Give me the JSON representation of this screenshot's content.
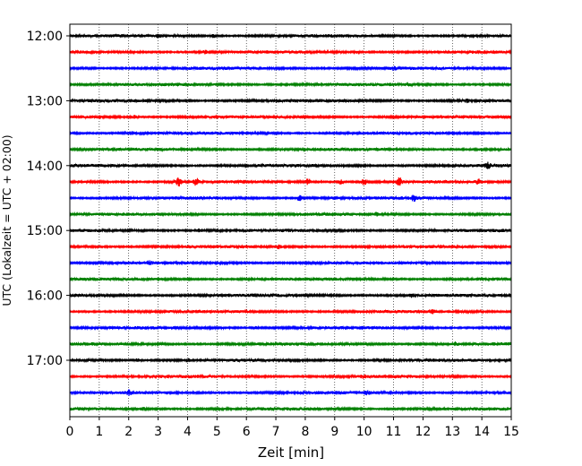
{
  "chart_data": {
    "type": "line",
    "title": "",
    "xlabel": "Zeit  [min]",
    "ylabel": "UTC (Lokalzeit = UTC + 02:00)",
    "xlim": [
      0,
      15
    ],
    "x_ticks": [
      0,
      1,
      2,
      3,
      4,
      5,
      6,
      7,
      8,
      9,
      10,
      11,
      12,
      13,
      14,
      15
    ],
    "x_tick_labels": [
      "0",
      "1",
      "2",
      "3",
      "4",
      "5",
      "6",
      "7",
      "8",
      "9",
      "10",
      "11",
      "12",
      "13",
      "14",
      "15"
    ],
    "y_tick_labels": [
      "12:00",
      "13:00",
      "14:00",
      "15:00",
      "16:00",
      "17:00"
    ],
    "y_tick_trace_index": [
      0,
      4,
      8,
      12,
      16,
      20
    ],
    "vertical_grid": true,
    "grid_style": "dotted",
    "trace_interval_min": 15,
    "color_cycle": [
      "#000000",
      "#ff0000",
      "#0000ff",
      "#008000"
    ],
    "series": [
      {
        "start": "12:00",
        "color": "#000000",
        "bursts": [
          {
            "x": 3.0,
            "amp": 1.4
          },
          {
            "x": 4.9,
            "amp": 1.7
          }
        ]
      },
      {
        "start": "12:15",
        "color": "#ff0000",
        "bursts": [
          {
            "x": 4.6,
            "amp": 1.3
          },
          {
            "x": 9.8,
            "amp": 1.5
          }
        ]
      },
      {
        "start": "12:30",
        "color": "#0000ff",
        "bursts": [
          {
            "x": 11.0,
            "amp": 1.2
          }
        ]
      },
      {
        "start": "12:45",
        "color": "#008000",
        "bursts": [
          {
            "x": 11.5,
            "amp": 1.3
          }
        ]
      },
      {
        "start": "13:00",
        "color": "#000000",
        "bursts": [
          {
            "x": 4.0,
            "amp": 1.5
          },
          {
            "x": 13.5,
            "amp": 1.3
          }
        ]
      },
      {
        "start": "13:15",
        "color": "#ff0000",
        "bursts": [
          {
            "x": 2.2,
            "amp": 1.4
          },
          {
            "x": 7.8,
            "amp": 1.3
          }
        ]
      },
      {
        "start": "13:30",
        "color": "#0000ff",
        "bursts": [
          {
            "x": 2.1,
            "amp": 1.3
          }
        ]
      },
      {
        "start": "13:45",
        "color": "#008000",
        "bursts": [
          {
            "x": 14.0,
            "amp": 1.3
          }
        ]
      },
      {
        "start": "14:00",
        "color": "#000000",
        "bursts": [
          {
            "x": 14.2,
            "amp": 3.0
          }
        ]
      },
      {
        "start": "14:15",
        "color": "#ff0000",
        "bursts": [
          {
            "x": 3.7,
            "amp": 4.5
          },
          {
            "x": 4.3,
            "amp": 3.5
          },
          {
            "x": 8.1,
            "amp": 3.0
          },
          {
            "x": 9.2,
            "amp": 2.5
          },
          {
            "x": 10.0,
            "amp": 3.5
          },
          {
            "x": 11.2,
            "amp": 4.0
          },
          {
            "x": 13.9,
            "amp": 2.2
          }
        ]
      },
      {
        "start": "14:30",
        "color": "#0000ff",
        "bursts": [
          {
            "x": 7.8,
            "amp": 2.8
          },
          {
            "x": 9.0,
            "amp": 2.0
          },
          {
            "x": 11.7,
            "amp": 3.2
          }
        ]
      },
      {
        "start": "14:45",
        "color": "#008000",
        "bursts": [
          {
            "x": 10.4,
            "amp": 1.6
          }
        ]
      },
      {
        "start": "15:00",
        "color": "#000000",
        "bursts": [
          {
            "x": 4.4,
            "amp": 1.2
          }
        ]
      },
      {
        "start": "15:15",
        "color": "#ff0000",
        "bursts": [
          {
            "x": 7.1,
            "amp": 1.8
          }
        ]
      },
      {
        "start": "15:30",
        "color": "#0000ff",
        "bursts": [
          {
            "x": 2.7,
            "amp": 1.3
          }
        ]
      },
      {
        "start": "15:45",
        "color": "#008000",
        "bursts": [
          {
            "x": 14.0,
            "amp": 1.2
          }
        ]
      },
      {
        "start": "16:00",
        "color": "#000000",
        "bursts": [
          {
            "x": 11.6,
            "amp": 1.6
          }
        ]
      },
      {
        "start": "16:15",
        "color": "#ff0000",
        "bursts": [
          {
            "x": 12.3,
            "amp": 1.5
          }
        ]
      },
      {
        "start": "16:30",
        "color": "#0000ff",
        "bursts": [
          {
            "x": 6.3,
            "amp": 1.2
          }
        ]
      },
      {
        "start": "16:45",
        "color": "#008000",
        "bursts": [
          {
            "x": 13.1,
            "amp": 1.8
          }
        ]
      },
      {
        "start": "17:00",
        "color": "#000000",
        "bursts": [
          {
            "x": 2.3,
            "amp": 1.6
          },
          {
            "x": 4.0,
            "amp": 1.3
          }
        ]
      },
      {
        "start": "17:15",
        "color": "#ff0000",
        "bursts": [
          {
            "x": 10.0,
            "amp": 1.5
          }
        ]
      },
      {
        "start": "17:30",
        "color": "#0000ff",
        "bursts": [
          {
            "x": 2.0,
            "amp": 2.0
          },
          {
            "x": 10.1,
            "amp": 1.3
          }
        ]
      },
      {
        "start": "17:45",
        "color": "#008000",
        "bursts": [
          {
            "x": 2.5,
            "amp": 1.6
          }
        ]
      }
    ]
  }
}
